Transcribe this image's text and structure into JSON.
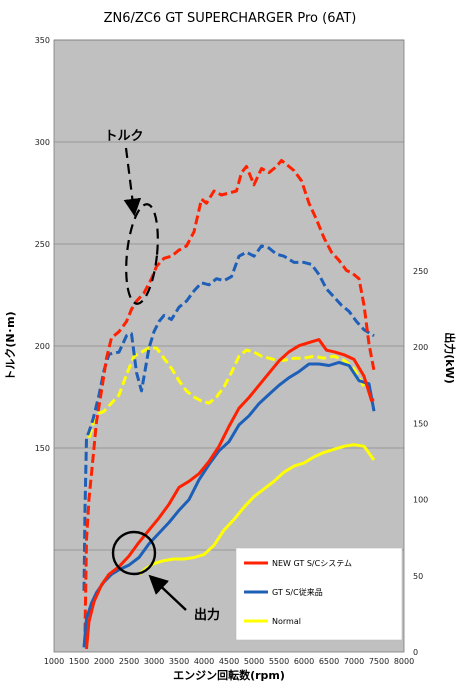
{
  "chart_data": {
    "type": "line",
    "title": "ZN6/ZC6 GT SUPERCHARGER Pro (6AT)",
    "xlabel": "エンジン回転数(rpm)",
    "ylabel_left": "トルク(N･m)",
    "ylabel_right": "出力(kW)",
    "xlim": [
      1000,
      8000
    ],
    "x_ticks": [
      "1000",
      "1500",
      "2000",
      "2500",
      "3000",
      "3500",
      "4000",
      "4500",
      "5000",
      "5500",
      "6000",
      "6500",
      "7000",
      "7500",
      "8000"
    ],
    "y_left_ticks": [
      "150",
      "200",
      "250",
      "300",
      "350"
    ],
    "y_right_ticks": [
      "0",
      "50",
      "100",
      "150",
      "200",
      "250"
    ],
    "grid": true,
    "plot_background": "#c0c0c0",
    "legend": {
      "placement": "bottom-right",
      "entries": [
        "NEW GT S/Cシステム",
        "GT S/C従来品",
        "Normal"
      ]
    },
    "annotations": {
      "torque": "トルク",
      "power": "出力"
    },
    "scales_note": "Torque on left axis (N·m, 150-350); power on right axis (kW, 0-250, 100 kW = 150 N·m gridline).",
    "series": [
      {
        "name": "NEW GT S/Cシステム",
        "group": "torque",
        "axis": "left",
        "color": "#ff2200",
        "dash": true,
        "x": [
          1620,
          1650,
          1700,
          1780,
          1850,
          1950,
          2050,
          2150,
          2300,
          2450,
          2550,
          2650,
          2800,
          2950,
          3050,
          3200,
          3350,
          3500,
          3650,
          3800,
          3950,
          4050,
          4200,
          4350,
          4500,
          4650,
          4750,
          4850,
          5000,
          5150,
          5300,
          5450,
          5550,
          5650,
          5800,
          5950,
          6100,
          6250,
          6400,
          6550,
          6700,
          6850,
          6950,
          7100,
          7200,
          7300,
          7400
        ],
        "y": [
          60,
          105,
          125,
          145,
          163,
          178,
          194,
          204,
          207,
          212,
          218,
          222,
          226,
          233,
          239,
          243,
          244,
          247,
          249,
          256,
          272,
          270,
          276,
          274,
          275,
          276,
          285,
          288,
          279,
          287,
          285,
          288,
          291,
          289,
          286,
          281,
          270,
          262,
          253,
          246,
          242,
          237,
          236,
          233,
          220,
          201,
          188
        ]
      },
      {
        "name": "GT S/C従来品",
        "group": "torque",
        "axis": "left",
        "color": "#1e5fb8",
        "dash": true,
        "x": [
          1600,
          1620,
          1650,
          1700,
          1780,
          1900,
          2000,
          2100,
          2300,
          2450,
          2550,
          2650,
          2750,
          2900,
          3000,
          3100,
          3200,
          3350,
          3500,
          3650,
          3800,
          3950,
          4100,
          4250,
          4400,
          4550,
          4700,
          4850,
          5000,
          5150,
          5300,
          5450,
          5600,
          5800,
          6000,
          6150,
          6300,
          6450,
          6600,
          6750,
          6900,
          7050,
          7200,
          7400
        ],
        "y": [
          80,
          120,
          155,
          158,
          164,
          176,
          188,
          196,
          197,
          205,
          206,
          187,
          178,
          199,
          207,
          212,
          215,
          213,
          219,
          222,
          227,
          231,
          230,
          233,
          232,
          234,
          244,
          246,
          244,
          249,
          248,
          245,
          244,
          241,
          241,
          240,
          235,
          228,
          224,
          220,
          217,
          212,
          208,
          205
        ]
      },
      {
        "name": "Normal",
        "group": "torque",
        "axis": "left",
        "color": "#ffff00",
        "dash": true,
        "x": [
          1700,
          1800,
          1900,
          2000,
          2150,
          2300,
          2450,
          2600,
          2750,
          2900,
          3050,
          3200,
          3350,
          3500,
          3650,
          3800,
          3950,
          4100,
          4250,
          4400,
          4550,
          4700,
          4850,
          5000,
          5150,
          5300,
          5450,
          5600,
          5800,
          6000,
          6200,
          6400,
          6600,
          6800,
          7000,
          7200
        ],
        "y": [
          155,
          163,
          167,
          168,
          172,
          176,
          186,
          195,
          197,
          199,
          199,
          194,
          189,
          183,
          178,
          175,
          173,
          172,
          175,
          180,
          187,
          195,
          198,
          197,
          195,
          194,
          193,
          193,
          194,
          194,
          195,
          194,
          195,
          193,
          189,
          180
        ]
      },
      {
        "name": "NEW GT S/Cシステム",
        "group": "power",
        "axis": "right",
        "color": "#ff2200",
        "dash": false,
        "x": [
          1650,
          1700,
          1800,
          1950,
          2100,
          2300,
          2500,
          2700,
          2900,
          3100,
          3300,
          3500,
          3700,
          3900,
          4100,
          4300,
          4500,
          4700,
          4900,
          5100,
          5300,
          5500,
          5700,
          5900,
          6100,
          6300,
          6450,
          6600,
          6800,
          7000,
          7200,
          7350,
          7400
        ],
        "y": [
          2,
          20,
          33,
          44,
          51,
          56,
          63,
          72,
          80,
          88,
          97,
          108,
          112,
          117,
          125,
          135,
          148,
          160,
          167,
          175,
          183,
          191,
          197,
          201,
          203,
          205,
          198,
          197,
          195,
          192,
          181,
          165,
          166
        ]
      },
      {
        "name": "GT S/C従来品",
        "group": "power",
        "axis": "right",
        "color": "#1e5fb8",
        "dash": false,
        "x": [
          1600,
          1650,
          1750,
          1850,
          2000,
          2150,
          2300,
          2500,
          2700,
          2900,
          3100,
          3300,
          3500,
          3700,
          3900,
          4100,
          4300,
          4500,
          4700,
          4900,
          5100,
          5300,
          5500,
          5700,
          5900,
          6100,
          6300,
          6500,
          6700,
          6900,
          7100,
          7300,
          7400
        ],
        "y": [
          3,
          22,
          32,
          39,
          46,
          51,
          54,
          57,
          62,
          71,
          78,
          85,
          93,
          100,
          113,
          123,
          132,
          138,
          149,
          155,
          163,
          169,
          175,
          180,
          184,
          189,
          189,
          188,
          190,
          188,
          178,
          176,
          158
        ]
      },
      {
        "name": "Normal",
        "group": "power",
        "axis": "right",
        "color": "#ffff00",
        "dash": false,
        "x": [
          2700,
          2850,
          3000,
          3200,
          3400,
          3600,
          3800,
          4000,
          4200,
          4400,
          4600,
          4800,
          5000,
          5200,
          5400,
          5600,
          5800,
          6000,
          6200,
          6400,
          6600,
          6800,
          7000,
          7200,
          7400
        ],
        "y": [
          51,
          55,
          58,
          60,
          61,
          61,
          62,
          64,
          70,
          80,
          87,
          95,
          102,
          107,
          112,
          118,
          122,
          124,
          128,
          131,
          133,
          135,
          136,
          135,
          126
        ]
      }
    ]
  }
}
